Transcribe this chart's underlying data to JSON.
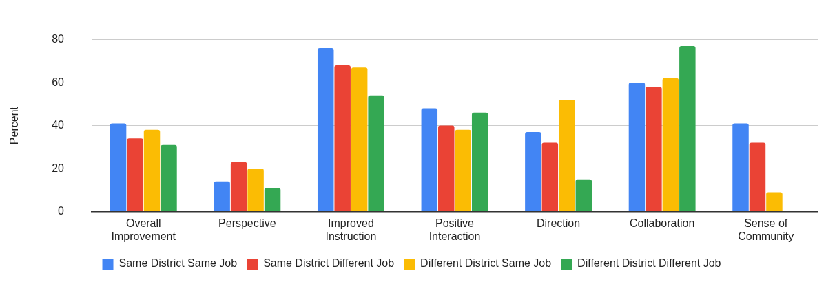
{
  "chart_data": {
    "type": "bar",
    "ylabel": "Percent",
    "categories": [
      "Overall Improvement",
      "Perspective",
      "Improved Instruction",
      "Positive Interaction",
      "Direction",
      "Collaboration",
      "Sense of Community"
    ],
    "series": [
      {
        "name": "Same District Same Job",
        "color": "#4285f4",
        "values": [
          41,
          14,
          76,
          48,
          37,
          60,
          41
        ]
      },
      {
        "name": "Same District Different Job",
        "color": "#ea4335",
        "values": [
          34,
          23,
          68,
          40,
          32,
          58,
          32
        ]
      },
      {
        "name": "Different District Same Job",
        "color": "#fbbc04",
        "values": [
          38,
          20,
          67,
          38,
          52,
          62,
          9
        ]
      },
      {
        "name": "Different District Different Job",
        "color": "#34a853",
        "values": [
          31,
          11,
          54,
          46,
          15,
          77,
          0
        ]
      }
    ],
    "ylim": [
      0,
      80
    ],
    "yticks": [
      0,
      20,
      40,
      60,
      80
    ],
    "grid": "y",
    "legend": "bottom"
  }
}
